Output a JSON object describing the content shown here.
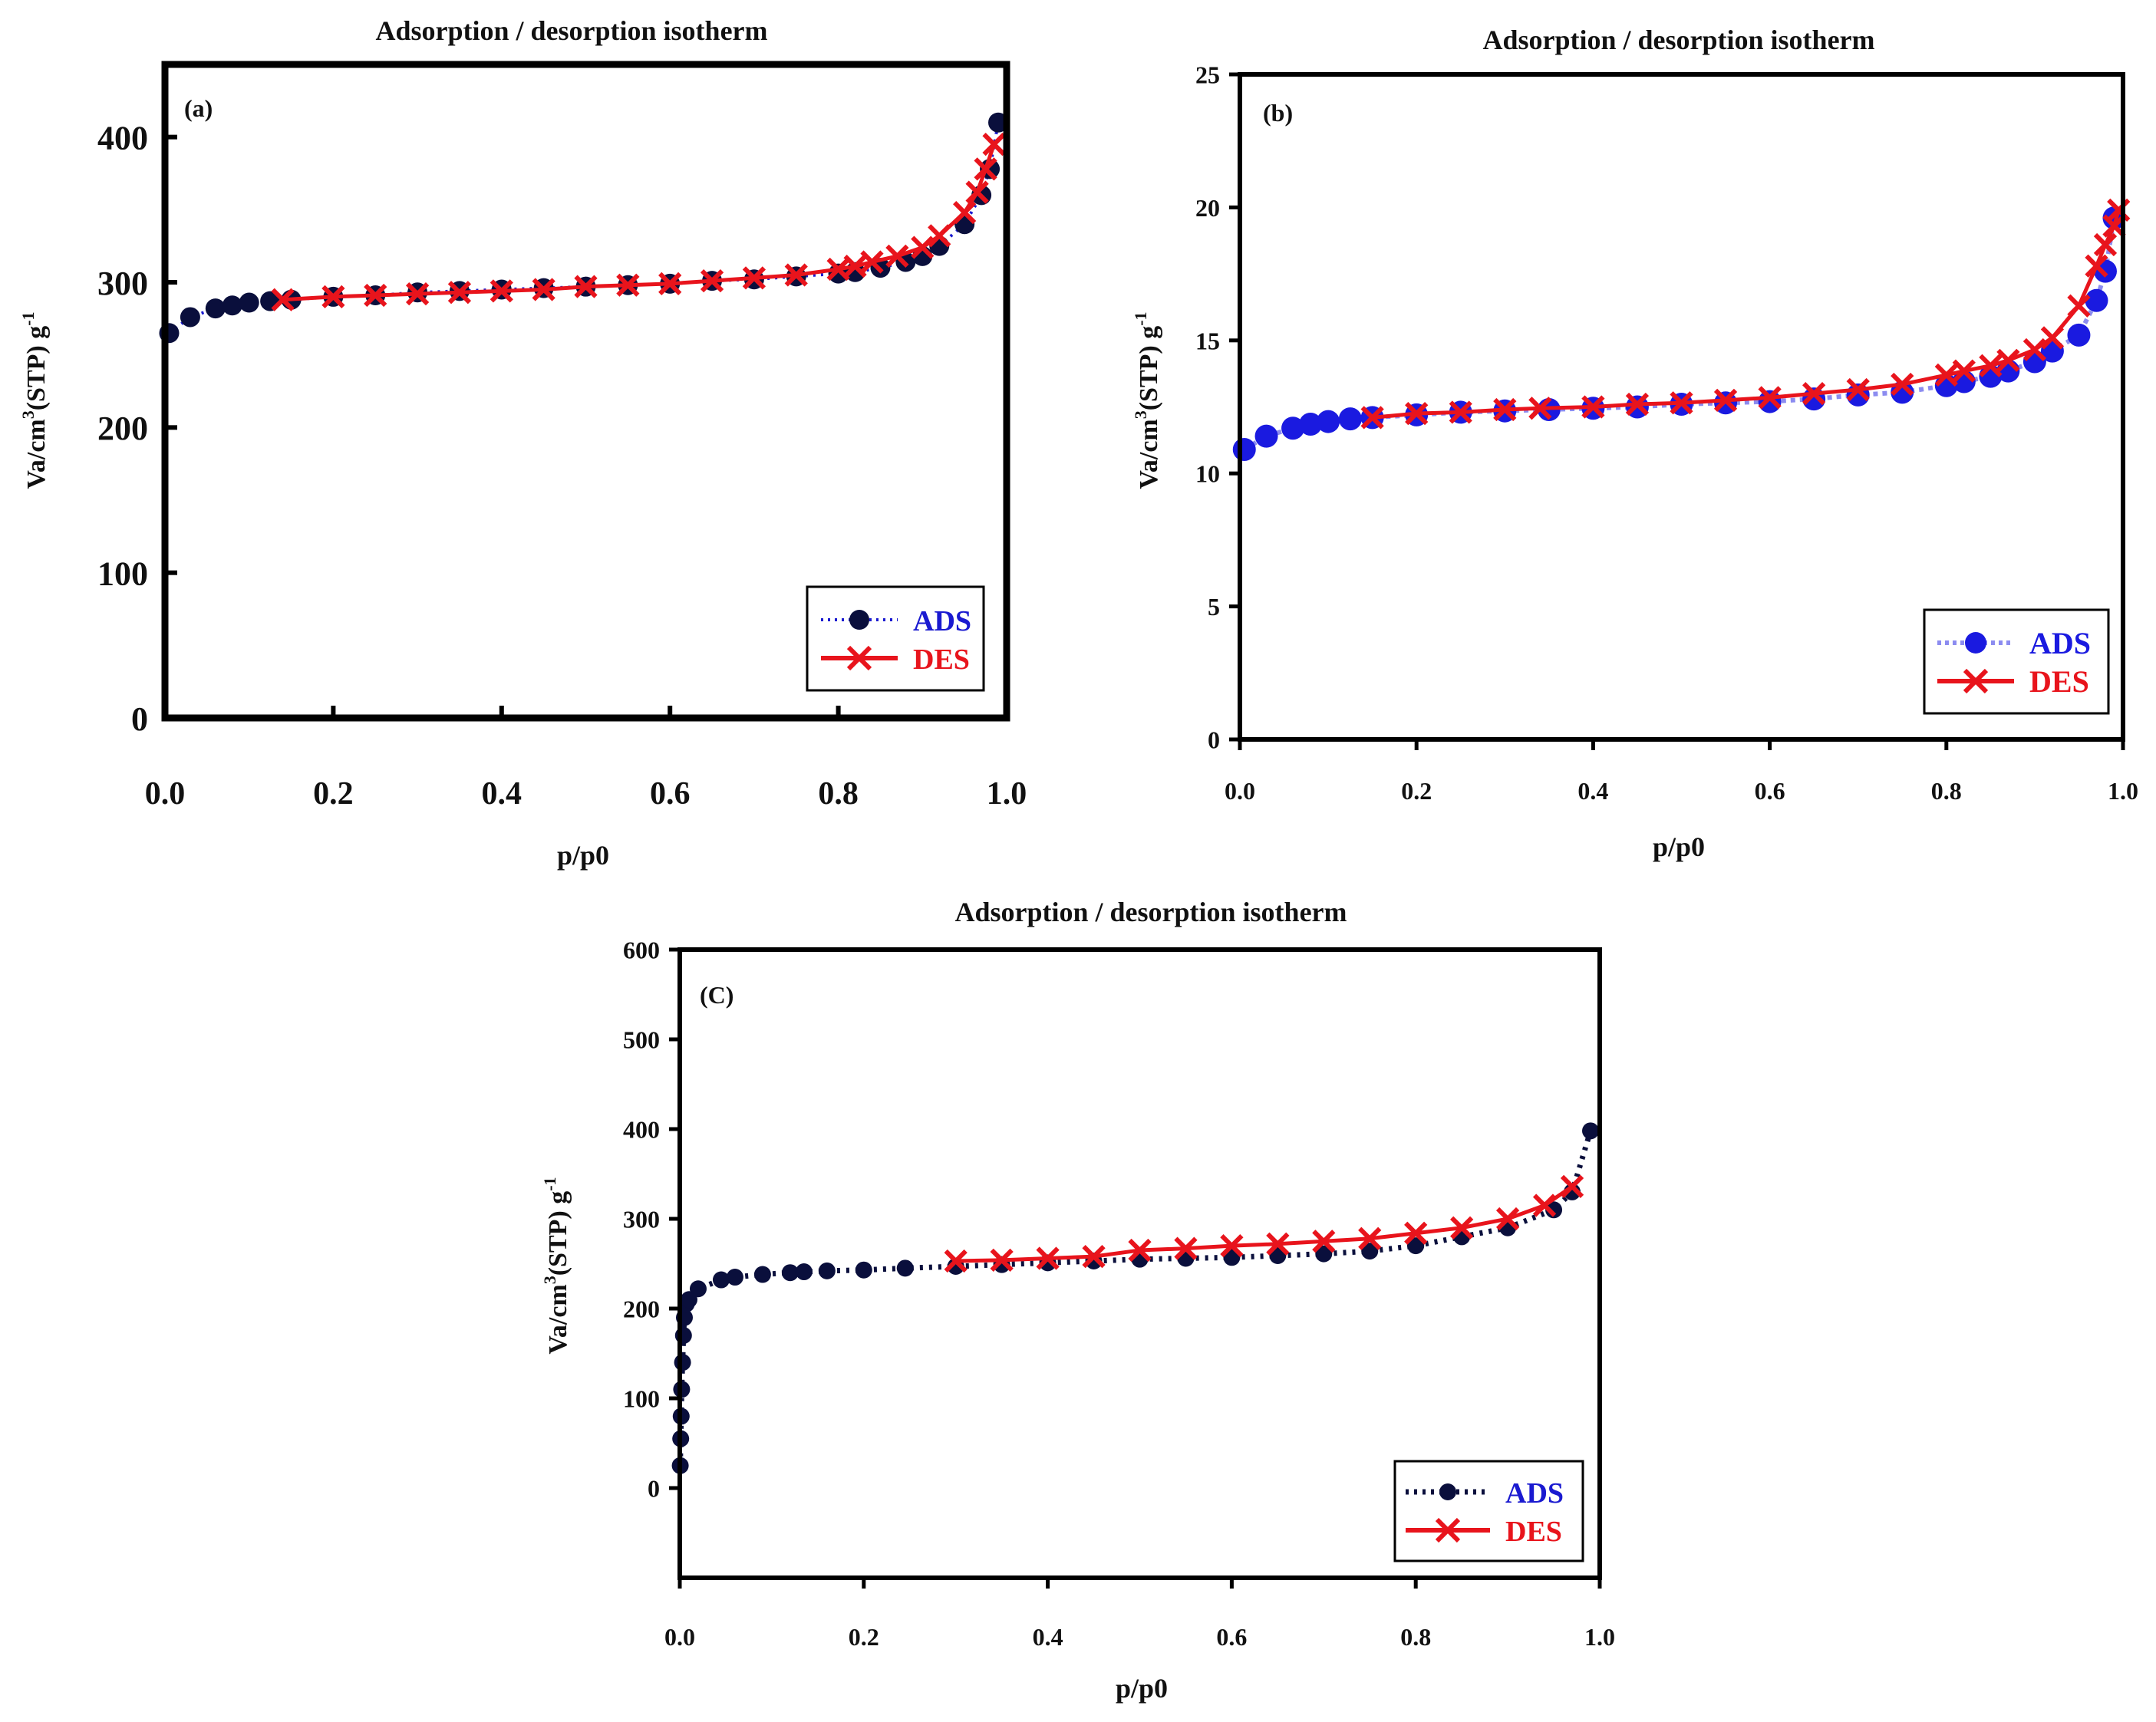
{
  "chart_data": [
    {
      "type": "line",
      "panel_label": "(a)",
      "title": "Adsorption / desorption isotherm",
      "xlabel": "p/p0",
      "ylabel": "Va/cm³(STP) g⁻¹",
      "ylabel_parts": {
        "base": "Va/cm",
        "sup1": "3",
        "mid": "(STP) g",
        "sup2": "-1"
      },
      "xlim": [
        0,
        1.0
      ],
      "ylim": [
        0,
        450
      ],
      "x_ticks": [
        0.0,
        0.2,
        0.4,
        0.6,
        0.8,
        1.0
      ],
      "x_tick_labels": [
        "0.0",
        "0.2",
        "0.4",
        "0.6",
        "0.8",
        "1.0"
      ],
      "y_ticks": [
        0,
        100,
        200,
        300,
        400
      ],
      "y_tick_labels": [
        "0",
        "100",
        "200",
        "300",
        "400"
      ],
      "legend": "bottom-right",
      "series": [
        {
          "name": "ADS",
          "color": "#0a0f3c",
          "line": "dotted",
          "marker": "circle",
          "x": [
            0.005,
            0.03,
            0.06,
            0.08,
            0.1,
            0.125,
            0.15,
            0.2,
            0.25,
            0.3,
            0.35,
            0.4,
            0.45,
            0.5,
            0.55,
            0.6,
            0.65,
            0.7,
            0.75,
            0.8,
            0.82,
            0.85,
            0.88,
            0.9,
            0.92,
            0.95,
            0.97,
            0.98,
            0.99
          ],
          "y": [
            265,
            276,
            282,
            284,
            286,
            287,
            288,
            290,
            291,
            293,
            294,
            295,
            296,
            297,
            298,
            299,
            301,
            302,
            304,
            306,
            307,
            310,
            314,
            318,
            325,
            340,
            360,
            378,
            410
          ]
        },
        {
          "name": "DES",
          "color": "#e8141c",
          "line": "solid",
          "marker": "x",
          "x": [
            0.14,
            0.2,
            0.25,
            0.3,
            0.35,
            0.4,
            0.45,
            0.5,
            0.55,
            0.6,
            0.65,
            0.7,
            0.75,
            0.8,
            0.82,
            0.84,
            0.87,
            0.9,
            0.92,
            0.95,
            0.965,
            0.975,
            0.985
          ],
          "y": [
            288,
            290,
            291,
            292,
            293,
            294,
            295,
            297,
            298,
            299,
            301,
            303,
            305,
            309,
            311,
            314,
            318,
            324,
            332,
            348,
            362,
            378,
            395
          ]
        }
      ]
    },
    {
      "type": "line",
      "panel_label": "(b)",
      "title": "Adsorption / desorption isotherm",
      "xlabel": "p/p0",
      "ylabel": "Va/cm³(STP) g⁻¹",
      "ylabel_parts": {
        "base": "Va/cm",
        "sup1": "3",
        "mid": "(STP) g",
        "sup2": "-1"
      },
      "xlim": [
        0,
        1.0
      ],
      "ylim": [
        0,
        25
      ],
      "x_ticks": [
        0.0,
        0.2,
        0.4,
        0.6,
        0.8,
        1.0
      ],
      "x_tick_labels": [
        "0.0",
        "0.2",
        "0.4",
        "0.6",
        "0.8",
        "1.0"
      ],
      "y_ticks": [
        0,
        5,
        10,
        15,
        20,
        25
      ],
      "y_tick_labels": [
        "0",
        "5",
        "10",
        "15",
        "20",
        "25"
      ],
      "legend": "bottom-right",
      "series": [
        {
          "name": "ADS",
          "color": "#1a1ae0",
          "line": "dotted",
          "marker": "circle",
          "x": [
            0.005,
            0.03,
            0.06,
            0.08,
            0.1,
            0.125,
            0.15,
            0.2,
            0.25,
            0.3,
            0.35,
            0.4,
            0.45,
            0.5,
            0.55,
            0.6,
            0.65,
            0.7,
            0.75,
            0.8,
            0.82,
            0.85,
            0.87,
            0.9,
            0.92,
            0.95,
            0.97,
            0.98,
            0.99
          ],
          "y": [
            10.9,
            11.4,
            11.7,
            11.85,
            11.95,
            12.05,
            12.1,
            12.2,
            12.3,
            12.35,
            12.4,
            12.45,
            12.5,
            12.6,
            12.65,
            12.7,
            12.8,
            12.95,
            13.05,
            13.3,
            13.45,
            13.65,
            13.85,
            14.2,
            14.6,
            15.2,
            16.5,
            17.6,
            19.6
          ]
        },
        {
          "name": "DES",
          "color": "#e8141c",
          "line": "solid",
          "marker": "x",
          "x": [
            0.15,
            0.2,
            0.25,
            0.3,
            0.34,
            0.4,
            0.45,
            0.5,
            0.55,
            0.6,
            0.65,
            0.7,
            0.75,
            0.8,
            0.82,
            0.85,
            0.87,
            0.9,
            0.92,
            0.95,
            0.97,
            0.98,
            0.99,
            0.995
          ],
          "y": [
            12.1,
            12.25,
            12.3,
            12.4,
            12.45,
            12.5,
            12.6,
            12.65,
            12.75,
            12.85,
            13.0,
            13.15,
            13.35,
            13.7,
            13.85,
            14.05,
            14.25,
            14.65,
            15.1,
            16.3,
            17.8,
            18.6,
            19.3,
            19.9
          ]
        }
      ]
    },
    {
      "type": "line",
      "panel_label": "(C)",
      "title": "Adsorption / desorption isotherm",
      "xlabel": "p/p0",
      "ylabel": "Va/cm³(STP) g⁻¹",
      "ylabel_parts": {
        "base": "Va/cm",
        "sup1": "3",
        "mid": "(STP) g",
        "sup2": "-1"
      },
      "xlim": [
        0,
        1.0
      ],
      "ylim": [
        -100,
        600
      ],
      "x_ticks": [
        0.0,
        0.2,
        0.4,
        0.6,
        0.8,
        1.0
      ],
      "x_tick_labels": [
        "0.0",
        "0.2",
        "0.4",
        "0.6",
        "0.8",
        "1.0"
      ],
      "y_ticks": [
        0,
        100,
        200,
        300,
        400,
        500,
        600
      ],
      "y_tick_labels": [
        "0",
        "100",
        "200",
        "300",
        "400",
        "500",
        "600"
      ],
      "legend": "bottom-right",
      "series": [
        {
          "name": "ADS",
          "color": "#0a0f3c",
          "line": "dotted",
          "marker": "circle",
          "x": [
            0.0005,
            0.001,
            0.0015,
            0.002,
            0.003,
            0.004,
            0.005,
            0.007,
            0.01,
            0.02,
            0.045,
            0.06,
            0.09,
            0.12,
            0.135,
            0.16,
            0.2,
            0.245,
            0.3,
            0.35,
            0.4,
            0.45,
            0.5,
            0.55,
            0.6,
            0.65,
            0.7,
            0.75,
            0.8,
            0.85,
            0.9,
            0.95,
            0.97,
            0.99
          ],
          "y": [
            25,
            55,
            80,
            110,
            140,
            170,
            190,
            205,
            210,
            222,
            232,
            235,
            238,
            240,
            241,
            242,
            243,
            245,
            247,
            249,
            251,
            253,
            255,
            256,
            257,
            259,
            261,
            264,
            270,
            280,
            290,
            310,
            330,
            398
          ]
        },
        {
          "name": "DES",
          "color": "#e8141c",
          "line": "solid",
          "marker": "x",
          "x": [
            0.3,
            0.35,
            0.4,
            0.45,
            0.5,
            0.55,
            0.6,
            0.65,
            0.7,
            0.75,
            0.8,
            0.85,
            0.9,
            0.94,
            0.97
          ],
          "y": [
            253,
            254,
            256,
            258,
            265,
            267,
            270,
            272,
            275,
            278,
            284,
            290,
            300,
            315,
            336
          ]
        }
      ]
    }
  ]
}
